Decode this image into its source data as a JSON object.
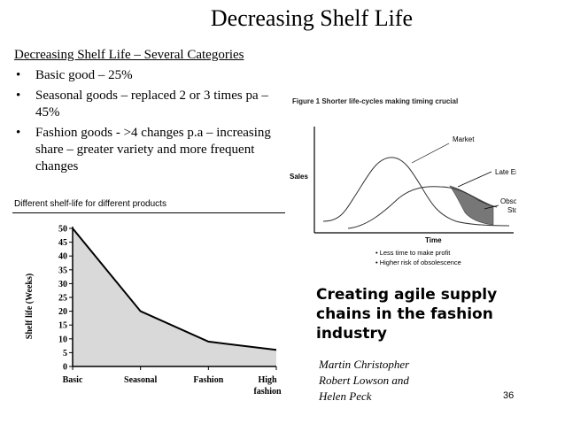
{
  "slide": {
    "title": "Decreasing Shelf Life",
    "subtitle": "Decreasing Shelf Life – Several Categories",
    "bullets": [
      "Basic good – 25%",
      "Seasonal goods – replaced 2 or 3 times pa – 45%",
      "Fashion goods - >4 changes p.a – increasing share – greater variety and more frequent changes"
    ],
    "page_number": "36"
  },
  "left_chart_caption": "Different shelf-life for different products",
  "right_figure": {
    "caption": "Figure 1 Shorter life-cycles making timing crucial",
    "ylabel": "Sales",
    "xlabel": "Time",
    "labels": [
      "Market",
      "Late Entrant",
      "Obsolescent",
      "Stock"
    ],
    "notes": [
      "Less time to make profit",
      "Higher risk of obsolescence"
    ]
  },
  "book": {
    "title_lines": [
      "Creating agile supply",
      "chains in the fashion",
      "industry"
    ],
    "authors": [
      "Martin Christopher",
      "Robert Lowson and",
      "Helen Peck"
    ]
  },
  "chart_data": [
    {
      "type": "area",
      "title": "Different shelf-life for different products",
      "ylabel": "Shelf life (Weeks)",
      "categories": [
        "Basic",
        "Seasonal",
        "Fashion",
        "High fashion"
      ],
      "values": [
        50,
        20,
        9,
        6
      ],
      "ylim": [
        0,
        50
      ],
      "yticks": [
        0,
        5,
        10,
        15,
        20,
        25,
        30,
        35,
        40,
        45,
        50
      ],
      "fill_color": "#d9d9d9"
    }
  ]
}
